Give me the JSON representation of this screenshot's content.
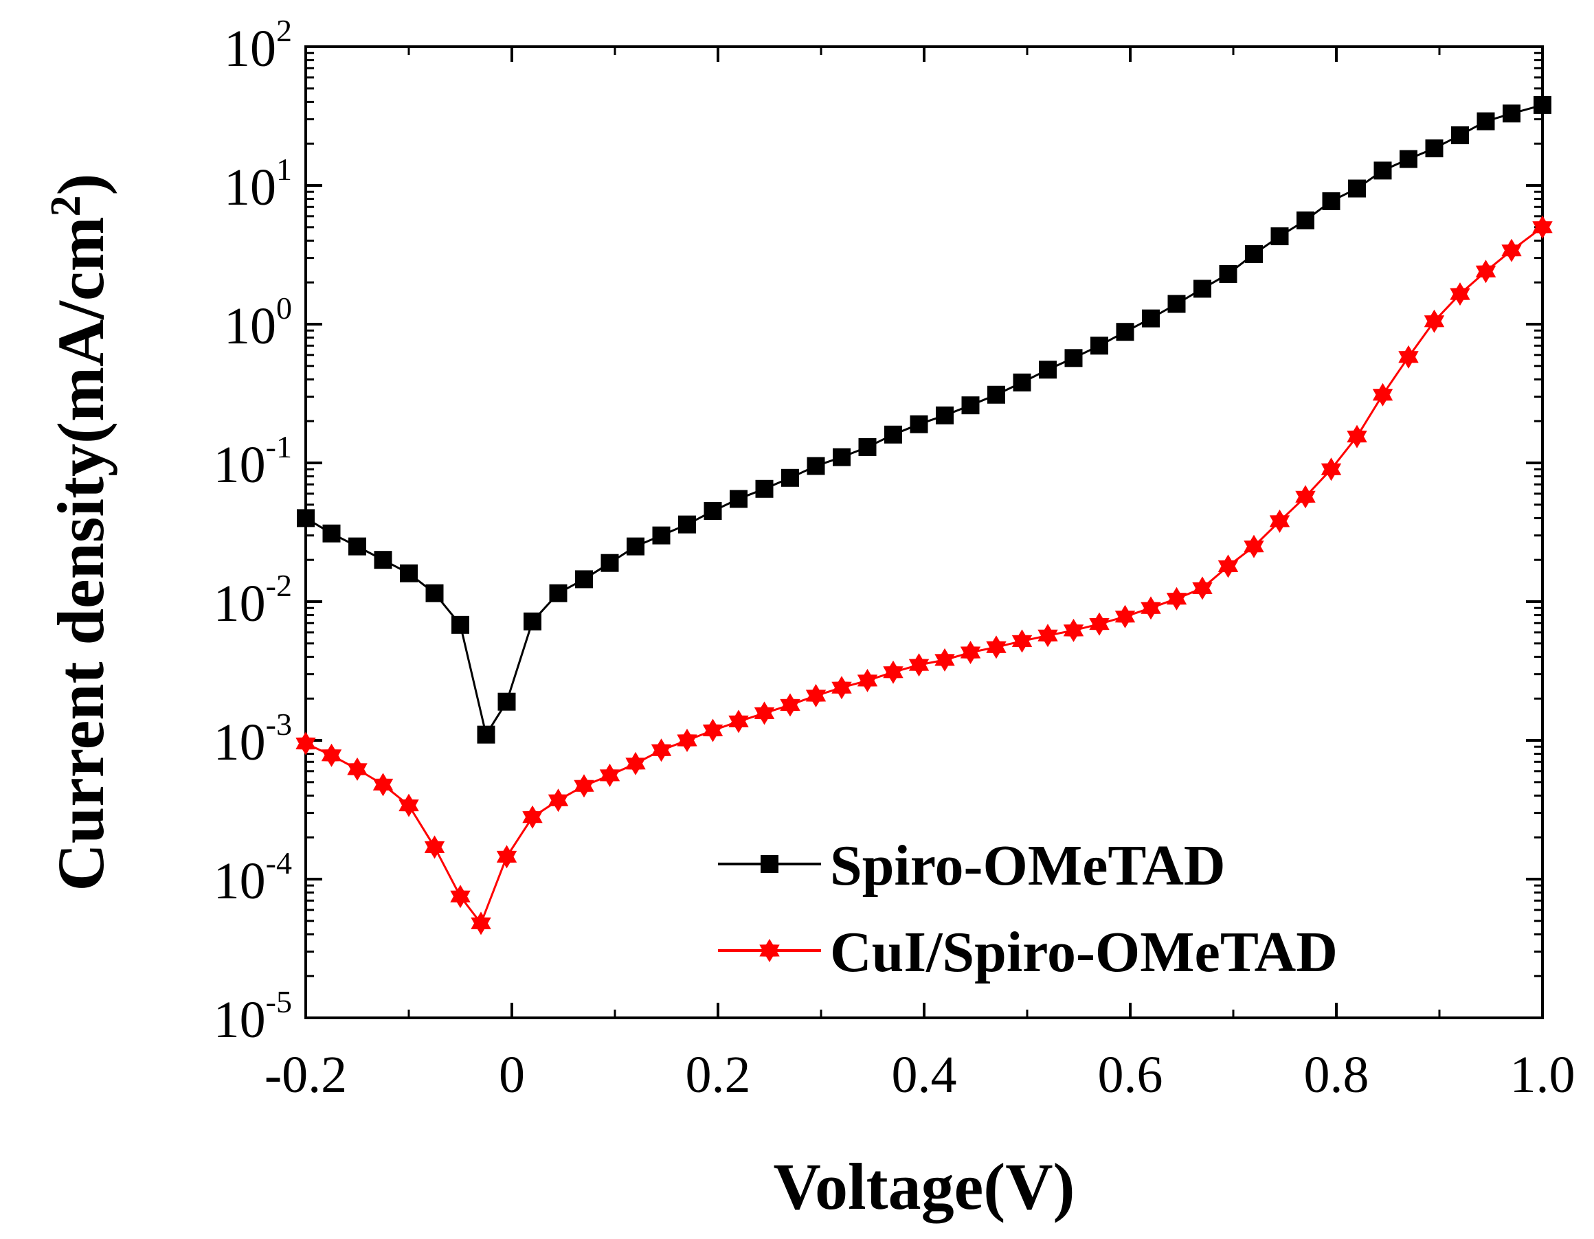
{
  "chart_data": {
    "type": "line",
    "title": "",
    "xlabel": "Voltage(V)",
    "ylabel_prefix": "Current density(mA/cm",
    "ylabel_sup": "2",
    "ylabel_suffix": ")",
    "yscale": "log",
    "xlim": [
      -0.2,
      1.0
    ],
    "ylim": [
      1e-05,
      100
    ],
    "grid": false,
    "legend_position": "bottom-right",
    "x_ticks": [
      {
        "value": -0.2,
        "label": "-0.2"
      },
      {
        "value": 0.0,
        "label": "0"
      },
      {
        "value": 0.2,
        "label": "0.2"
      },
      {
        "value": 0.4,
        "label": "0.4"
      },
      {
        "value": 0.6,
        "label": "0.6"
      },
      {
        "value": 0.8,
        "label": "0.8"
      },
      {
        "value": 1.0,
        "label": "1.0"
      }
    ],
    "y_ticks": [
      {
        "exp": 2,
        "base": "10",
        "sup": "2"
      },
      {
        "exp": 1,
        "base": "10",
        "sup": "1"
      },
      {
        "exp": 0,
        "base": "10",
        "sup": "0"
      },
      {
        "exp": -1,
        "base": "10",
        "sup": "-1"
      },
      {
        "exp": -2,
        "base": "10",
        "sup": "-2"
      },
      {
        "exp": -3,
        "base": "10",
        "sup": "-3"
      },
      {
        "exp": -4,
        "base": "10",
        "sup": "-4"
      },
      {
        "exp": -5,
        "base": "10",
        "sup": "-5"
      }
    ],
    "series": [
      {
        "name": "Spiro-OMeTAD",
        "color": "#000000",
        "marker": "square",
        "x": [
          -0.2,
          -0.175,
          -0.15,
          -0.125,
          -0.1,
          -0.075,
          -0.05,
          -0.025,
          -0.005,
          0.02,
          0.045,
          0.07,
          0.095,
          0.12,
          0.145,
          0.17,
          0.195,
          0.22,
          0.245,
          0.27,
          0.295,
          0.32,
          0.345,
          0.37,
          0.395,
          0.42,
          0.445,
          0.47,
          0.495,
          0.52,
          0.545,
          0.57,
          0.595,
          0.62,
          0.645,
          0.67,
          0.695,
          0.72,
          0.745,
          0.77,
          0.795,
          0.82,
          0.845,
          0.87,
          0.895,
          0.92,
          0.945,
          0.97,
          1.0
        ],
        "y": [
          0.04,
          0.031,
          0.025,
          0.02,
          0.016,
          0.0115,
          0.0068,
          0.0011,
          0.0019,
          0.0072,
          0.0115,
          0.0145,
          0.019,
          0.025,
          0.03,
          0.036,
          0.045,
          0.055,
          0.065,
          0.078,
          0.095,
          0.11,
          0.13,
          0.16,
          0.19,
          0.22,
          0.26,
          0.31,
          0.38,
          0.47,
          0.57,
          0.7,
          0.88,
          1.1,
          1.4,
          1.8,
          2.3,
          3.2,
          4.3,
          5.6,
          7.7,
          9.5,
          12.8,
          15.5,
          18.5,
          23,
          29,
          33,
          38
        ]
      },
      {
        "name": "CuI/Spiro-OMeTAD",
        "color": "#ff0000",
        "marker": "star",
        "x": [
          -0.2,
          -0.175,
          -0.15,
          -0.125,
          -0.1,
          -0.075,
          -0.05,
          -0.03,
          -0.005,
          0.02,
          0.045,
          0.07,
          0.095,
          0.12,
          0.145,
          0.17,
          0.195,
          0.22,
          0.245,
          0.27,
          0.295,
          0.32,
          0.345,
          0.37,
          0.395,
          0.42,
          0.445,
          0.47,
          0.495,
          0.52,
          0.545,
          0.57,
          0.595,
          0.62,
          0.645,
          0.67,
          0.695,
          0.72,
          0.745,
          0.77,
          0.795,
          0.82,
          0.845,
          0.87,
          0.895,
          0.92,
          0.945,
          0.97,
          1.0
        ],
        "y": [
          0.00095,
          0.00078,
          0.00062,
          0.00048,
          0.00034,
          0.00017,
          7.5e-05,
          4.8e-05,
          0.000145,
          0.00028,
          0.00037,
          0.00047,
          0.00056,
          0.00068,
          0.00085,
          0.001,
          0.00118,
          0.00137,
          0.00157,
          0.0018,
          0.0021,
          0.0024,
          0.0027,
          0.0031,
          0.0035,
          0.0038,
          0.0043,
          0.0047,
          0.0052,
          0.0057,
          0.0062,
          0.0069,
          0.0078,
          0.009,
          0.0105,
          0.0125,
          0.018,
          0.025,
          0.038,
          0.057,
          0.09,
          0.155,
          0.31,
          0.58,
          1.05,
          1.65,
          2.4,
          3.4,
          5.0
        ]
      }
    ]
  }
}
